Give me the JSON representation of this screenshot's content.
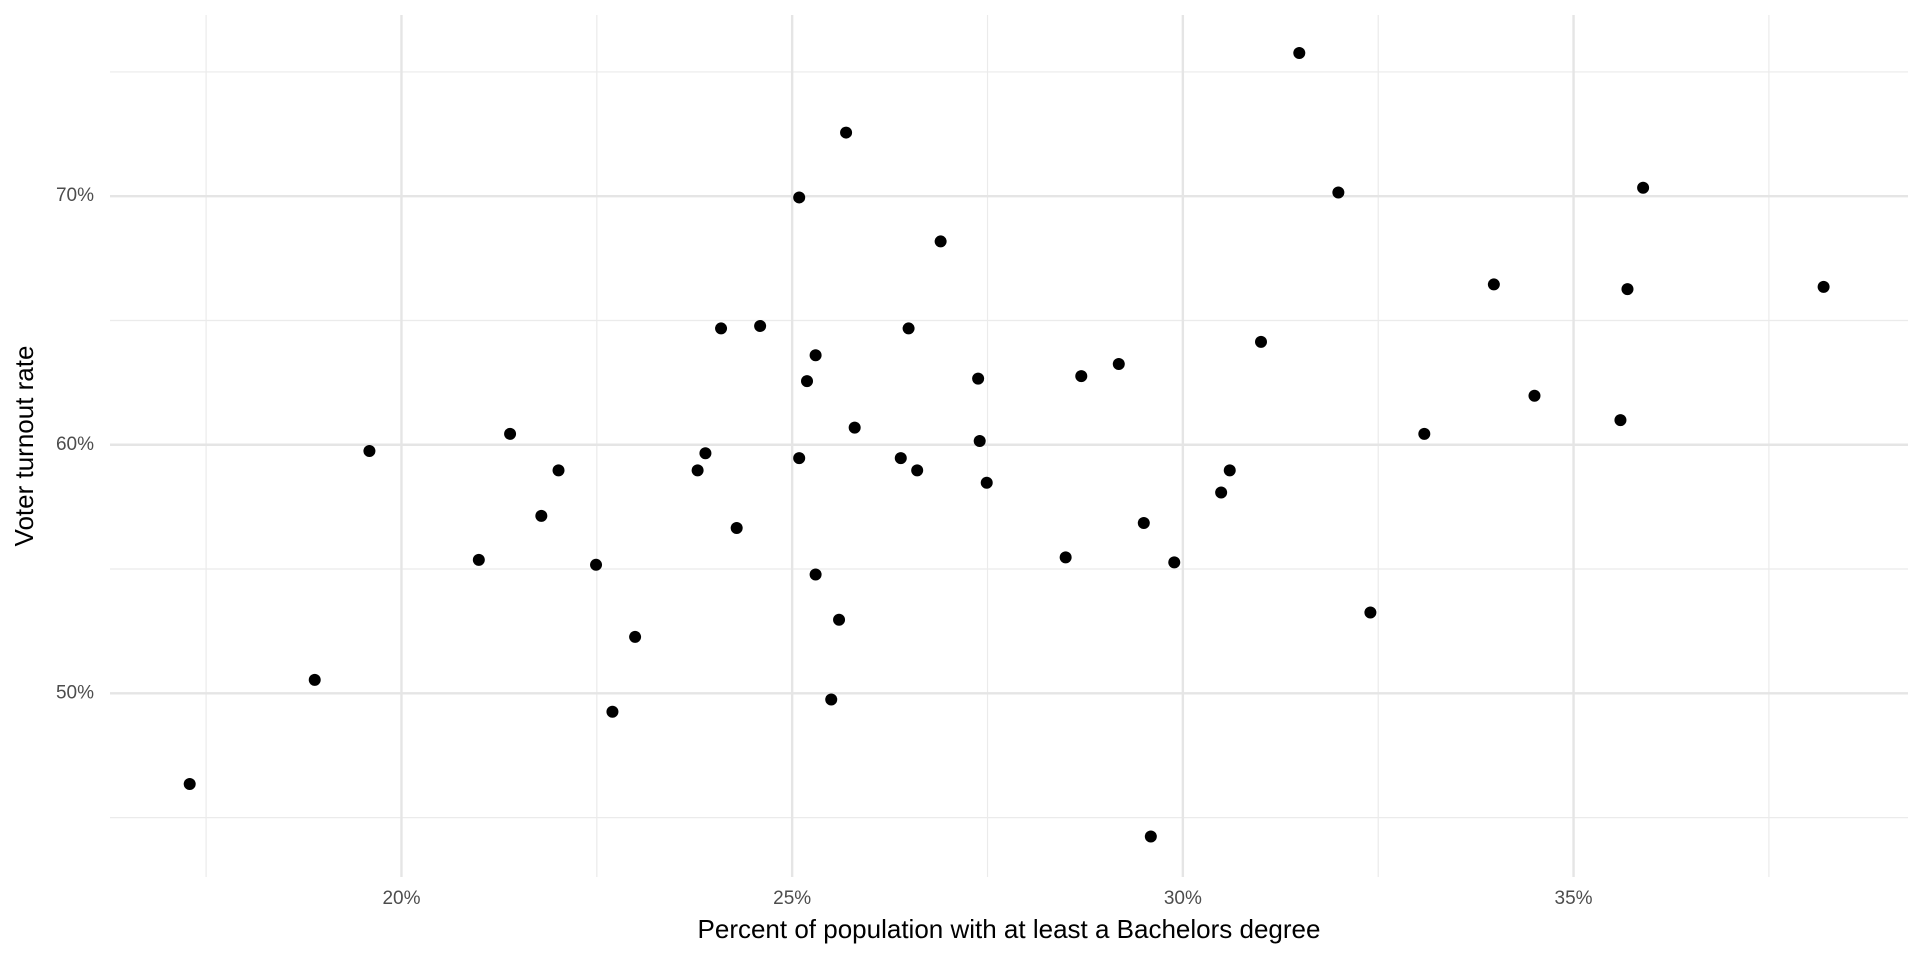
{
  "chart_data": {
    "type": "scatter",
    "x_label": "Percent of population with at least a Bachelors degree",
    "y_label": "Voter turnout rate",
    "color": "#000000",
    "grid": true,
    "xlim": [
      16.27,
      39.28
    ],
    "ylim": [
      42.61,
      77.29
    ],
    "xticks": [
      {
        "value": 20,
        "label": "20%"
      },
      {
        "value": 25,
        "label": "25%"
      },
      {
        "value": 30,
        "label": "30%"
      },
      {
        "value": 35,
        "label": "35%"
      }
    ],
    "yticks": [
      {
        "value": 50,
        "label": "50%"
      },
      {
        "value": 60,
        "label": "60%"
      },
      {
        "value": 70,
        "label": "70%"
      }
    ],
    "xminor": [
      17.5,
      22.5,
      27.5,
      32.5,
      37.5
    ],
    "yminor": [
      45,
      55,
      65,
      75
    ],
    "x": [
      17.29,
      18.89,
      19.59,
      20.99,
      21.39,
      21.79,
      22.01,
      22.49,
      22.7,
      22.99,
      23.79,
      23.89,
      24.09,
      24.29,
      24.59,
      25.09,
      25.09,
      25.19,
      25.3,
      25.3,
      25.5,
      25.6,
      25.69,
      25.8,
      26.39,
      26.49,
      26.6,
      26.9,
      27.38,
      27.4,
      27.49,
      28.5,
      28.7,
      29.18,
      29.5,
      29.59,
      29.89,
      30.49,
      30.6,
      31.0,
      31.49,
      31.99,
      32.4,
      33.09,
      33.98,
      34.5,
      35.6,
      35.69,
      35.89,
      38.2
    ],
    "values": [
      46.35,
      50.54,
      59.75,
      55.37,
      60.44,
      57.14,
      58.97,
      55.17,
      49.26,
      52.27,
      58.97,
      59.66,
      64.68,
      56.65,
      64.78,
      69.95,
      59.46,
      62.56,
      63.6,
      54.78,
      49.75,
      52.96,
      72.56,
      60.69,
      59.46,
      64.68,
      58.97,
      68.18,
      62.66,
      60.15,
      58.47,
      55.47,
      62.76,
      63.25,
      56.85,
      44.24,
      55.27,
      58.08,
      58.97,
      64.14,
      75.76,
      70.15,
      53.25,
      60.44,
      66.45,
      61.97,
      60.99,
      66.26,
      70.34,
      66.35
    ]
  }
}
